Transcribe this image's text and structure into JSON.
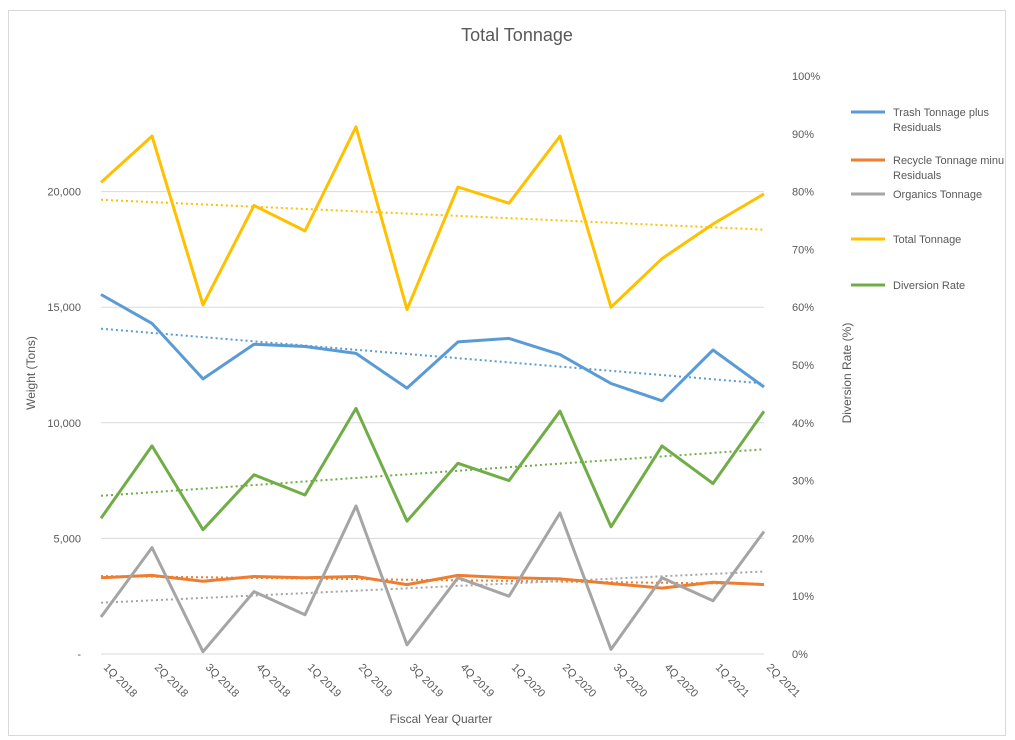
{
  "chart_data": {
    "type": "line",
    "title": "Total Tonnage",
    "xlabel": "Fiscal Year Quarter",
    "ylabel": "Weight (Tons)",
    "y2label": "Diversion Rate (%)",
    "categories": [
      "1Q 2018",
      "2Q 2018",
      "3Q 2018",
      "4Q 2018",
      "1Q 2019",
      "2Q 2019",
      "3Q 2019",
      "4Q 2019",
      "1Q 2020",
      "2Q 2020",
      "3Q 2020",
      "4Q 2020",
      "1Q 2021",
      "2Q 2021"
    ],
    "ylim": [
      0,
      25000
    ],
    "y2lim": [
      0,
      1
    ],
    "y_ticks": [
      {
        "value": 0,
        "label": "-"
      },
      {
        "value": 5000,
        "label": "5,000"
      },
      {
        "value": 10000,
        "label": "10,000"
      },
      {
        "value": 15000,
        "label": "15,000"
      },
      {
        "value": 20000,
        "label": "20,000"
      }
    ],
    "y2_ticks": [
      {
        "value": 0,
        "label": "0%"
      },
      {
        "value": 0.1,
        "label": "10%"
      },
      {
        "value": 0.2,
        "label": "20%"
      },
      {
        "value": 0.3,
        "label": "30%"
      },
      {
        "value": 0.4,
        "label": "40%"
      },
      {
        "value": 0.5,
        "label": "50%"
      },
      {
        "value": 0.6,
        "label": "60%"
      },
      {
        "value": 0.7,
        "label": "70%"
      },
      {
        "value": 0.8,
        "label": "80%"
      },
      {
        "value": 0.9,
        "label": "90%"
      },
      {
        "value": 1.0,
        "label": "100%"
      }
    ],
    "series": [
      {
        "name": "Trash Tonnage plus Residuals",
        "color": "#5b9bd5",
        "axis": "left",
        "trendline": true,
        "values": [
          15550,
          14300,
          11900,
          13400,
          13300,
          13000,
          11500,
          13500,
          13650,
          12950,
          11700,
          10950,
          13150,
          11550
        ]
      },
      {
        "name": "Recycle Tonnage minus Residuals",
        "color": "#ed7d31",
        "axis": "left",
        "trendline": true,
        "values": [
          3300,
          3400,
          3150,
          3350,
          3300,
          3350,
          3000,
          3400,
          3300,
          3250,
          3050,
          2850,
          3100,
          3000
        ]
      },
      {
        "name": "Organics Tonnage",
        "color": "#a5a5a5",
        "axis": "left",
        "trendline": true,
        "values": [
          1600,
          4600,
          100,
          2700,
          1700,
          6400,
          400,
          3300,
          2500,
          6100,
          200,
          3300,
          2300,
          5300
        ]
      },
      {
        "name": "Total Tonnage",
        "color": "#ffc000",
        "axis": "left",
        "trendline": true,
        "values": [
          20400,
          22400,
          15100,
          19400,
          18300,
          22800,
          14900,
          20200,
          19500,
          22400,
          15000,
          17100,
          18600,
          19900
        ]
      },
      {
        "name": "Diversion Rate",
        "color": "#70ad47",
        "axis": "right",
        "trendline": true,
        "values": [
          0.235,
          0.36,
          0.215,
          0.31,
          0.275,
          0.425,
          0.23,
          0.33,
          0.3,
          0.42,
          0.22,
          0.36,
          0.295,
          0.42
        ]
      }
    ],
    "legend": {
      "position": "right",
      "entries": [
        {
          "lines": [
            "Trash Tonnage plus",
            "Residuals"
          ]
        },
        {
          "lines": [
            "Recycle Tonnage minu",
            "Residuals"
          ]
        },
        {
          "lines": [
            "Organics Tonnage"
          ]
        },
        {
          "lines": [
            "Total Tonnage"
          ]
        },
        {
          "lines": [
            "Diversion Rate"
          ]
        }
      ]
    },
    "grid": true
  }
}
